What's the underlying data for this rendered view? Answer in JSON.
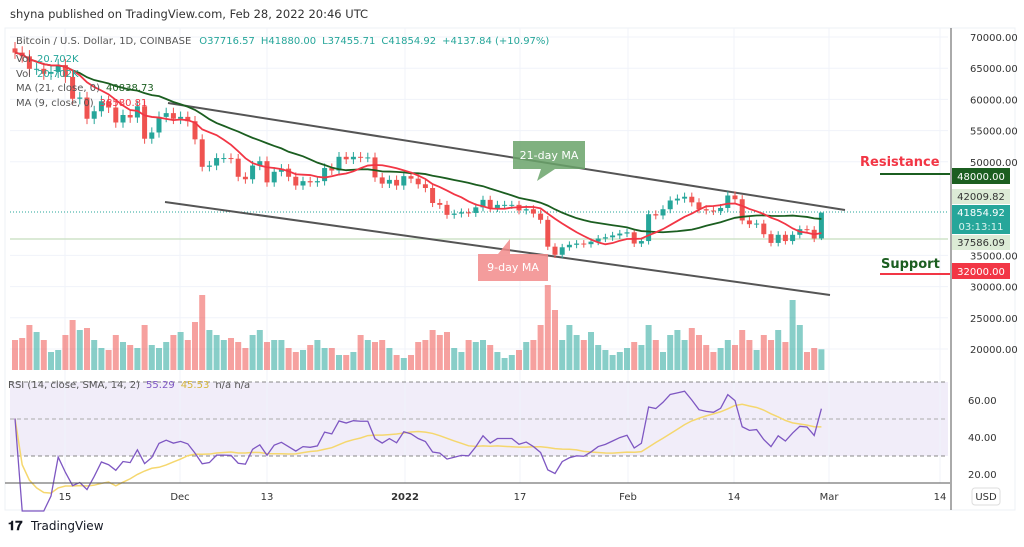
{
  "header": {
    "published": "shyna published on TradingView.com, Feb 28, 2022 20:46 UTC"
  },
  "legend": {
    "symbol": "Bitcoin / U.S. Dollar, 1D, COINBASE",
    "open": "O37716.57",
    "high": "H41880.00",
    "low": "L37455.71",
    "close": "C41854.92",
    "change": "+4137.84 (+10.97%)",
    "vol_label": "Vol",
    "vol_value": "20.702K",
    "vol2_label": "Vol",
    "vol2_value": "20.702K",
    "ma21_label": "MA (21, close, 0)",
    "ma21_value": "40838.73",
    "ma9_label": "MA (9, close, 0)",
    "ma9_value": "38580.81",
    "rsi_label": "RSI (14, close, SMA, 14, 2)",
    "rsi_value": "55.29",
    "rsi_sma_value": "45.53",
    "rsi_na": "n/a  n/a"
  },
  "price_axis": {
    "currency": "USD",
    "ticks": [
      "70000.00",
      "65000.00",
      "60000.00",
      "55000.00",
      "50000.00",
      "35000.00",
      "30000.00",
      "25000.00",
      "20000.00"
    ],
    "resistance_price": "48000.00",
    "high_marker": "42009.82",
    "last_price": "41854.92",
    "countdown": "03:13:11",
    "low_marker": "37586.09",
    "support_price": "32000.00"
  },
  "rsi_axis": {
    "ticks": [
      "60.00",
      "40.00",
      "20.00"
    ]
  },
  "time_axis": {
    "ticks": [
      "15",
      "Dec",
      "13",
      "2022",
      "17",
      "Feb",
      "14",
      "Mar",
      "14"
    ]
  },
  "annotations": {
    "resistance": "Resistance",
    "support": "Support",
    "ma21": "21-day MA",
    "ma9": "9-day MA"
  },
  "footer": {
    "logo": "TradingView"
  },
  "colors": {
    "up": "#26a69a",
    "down": "#ef5350",
    "ma9": "#f23645",
    "ma21": "#1b5e20",
    "rsi": "#7e57c2",
    "rsi_sma": "#f5d76e",
    "resistance_line": "#1b5e20",
    "support_line": "#f23645"
  },
  "chart_data": {
    "type": "candlestick",
    "title": "Bitcoin / U.S. Dollar, 1D, COINBASE",
    "ylim": [
      15000,
      71000
    ],
    "columns": [
      "date",
      "close",
      "volume_k"
    ],
    "last_candle": {
      "open": 37716.57,
      "high": 41880.0,
      "low": 37455.71,
      "close": 41854.92,
      "volume_k": 20.702
    },
    "candles": [
      [
        "2021-11-08",
        67500,
        30
      ],
      [
        "2021-11-09",
        66900,
        32
      ],
      [
        "2021-11-10",
        64900,
        45
      ],
      [
        "2021-11-11",
        64900,
        38
      ],
      [
        "2021-11-12",
        64100,
        30
      ],
      [
        "2021-11-13",
        64400,
        18
      ],
      [
        "2021-11-14",
        65500,
        20
      ],
      [
        "2021-11-15",
        63600,
        35
      ],
      [
        "2021-11-16",
        60100,
        50
      ],
      [
        "2021-11-17",
        60300,
        40
      ],
      [
        "2021-11-18",
        56900,
        42
      ],
      [
        "2021-11-19",
        58100,
        30
      ],
      [
        "2021-11-20",
        59700,
        22
      ],
      [
        "2021-11-21",
        58700,
        20
      ],
      [
        "2021-11-22",
        56300,
        35
      ],
      [
        "2021-11-23",
        57500,
        28
      ],
      [
        "2021-11-24",
        57100,
        25
      ],
      [
        "2021-11-25",
        58900,
        22
      ],
      [
        "2021-11-26",
        53700,
        45
      ],
      [
        "2021-11-27",
        54700,
        25
      ],
      [
        "2021-11-28",
        57200,
        22
      ],
      [
        "2021-11-29",
        57800,
        28
      ],
      [
        "2021-11-30",
        56900,
        35
      ],
      [
        "2021-12-01",
        57200,
        38
      ],
      [
        "2021-12-02",
        56500,
        30
      ],
      [
        "2021-12-03",
        53600,
        48
      ],
      [
        "2021-12-04",
        49200,
        75
      ],
      [
        "2021-12-05",
        49400,
        40
      ],
      [
        "2021-12-06",
        50600,
        35
      ],
      [
        "2021-12-07",
        50600,
        30
      ],
      [
        "2021-12-08",
        50500,
        32
      ],
      [
        "2021-12-09",
        47600,
        28
      ],
      [
        "2021-12-10",
        47200,
        22
      ],
      [
        "2021-12-11",
        49400,
        35
      ],
      [
        "2021-12-12",
        50100,
        40
      ],
      [
        "2021-12-13",
        46700,
        28
      ],
      [
        "2021-12-14",
        48400,
        30
      ],
      [
        "2021-12-15",
        48900,
        30
      ],
      [
        "2021-12-16",
        47600,
        22
      ],
      [
        "2021-12-17",
        46200,
        18
      ],
      [
        "2021-12-18",
        46900,
        20
      ],
      [
        "2021-12-19",
        46700,
        25
      ],
      [
        "2021-12-20",
        46900,
        30
      ],
      [
        "2021-12-21",
        49000,
        22
      ],
      [
        "2021-12-22",
        48600,
        22
      ],
      [
        "2021-12-23",
        50800,
        15
      ],
      [
        "2021-12-24",
        50400,
        15
      ],
      [
        "2021-12-25",
        50800,
        18
      ],
      [
        "2021-12-26",
        50700,
        35
      ],
      [
        "2021-12-27",
        50700,
        30
      ],
      [
        "2021-12-28",
        47500,
        28
      ],
      [
        "2021-12-29",
        46500,
        30
      ],
      [
        "2021-12-30",
        47100,
        22
      ],
      [
        "2021-12-31",
        46200,
        15
      ],
      [
        "2022-01-01",
        47700,
        12
      ],
      [
        "2022-01-02",
        47300,
        15
      ],
      [
        "2022-01-03",
        46400,
        28
      ],
      [
        "2022-01-04",
        45800,
        30
      ],
      [
        "2022-01-05",
        43400,
        40
      ],
      [
        "2022-01-06",
        43100,
        35
      ],
      [
        "2022-01-07",
        41500,
        38
      ],
      [
        "2022-01-08",
        41700,
        22
      ],
      [
        "2022-01-09",
        41900,
        18
      ],
      [
        "2022-01-10",
        41800,
        30
      ],
      [
        "2022-01-11",
        42700,
        28
      ],
      [
        "2022-01-12",
        43900,
        30
      ],
      [
        "2022-01-13",
        42600,
        25
      ],
      [
        "2022-01-14",
        43100,
        18
      ],
      [
        "2022-01-15",
        43100,
        12
      ],
      [
        "2022-01-16",
        43100,
        15
      ],
      [
        "2022-01-17",
        42200,
        20
      ],
      [
        "2022-01-18",
        42400,
        28
      ],
      [
        "2022-01-19",
        41700,
        30
      ],
      [
        "2022-01-20",
        40700,
        45
      ],
      [
        "2022-01-21",
        36400,
        85
      ],
      [
        "2022-01-22",
        35100,
        60
      ],
      [
        "2022-01-23",
        36300,
        30
      ],
      [
        "2022-01-24",
        36700,
        45
      ],
      [
        "2022-01-25",
        36900,
        35
      ],
      [
        "2022-01-26",
        36800,
        30
      ],
      [
        "2022-01-27",
        37200,
        38
      ],
      [
        "2022-01-28",
        37700,
        25
      ],
      [
        "2022-01-29",
        37900,
        20
      ],
      [
        "2022-01-30",
        38200,
        15
      ],
      [
        "2022-01-31",
        38500,
        18
      ],
      [
        "2022-02-01",
        38700,
        22
      ],
      [
        "2022-02-02",
        36900,
        28
      ],
      [
        "2022-02-03",
        37300,
        25
      ],
      [
        "2022-02-04",
        41600,
        45
      ],
      [
        "2022-02-05",
        41400,
        30
      ],
      [
        "2022-02-06",
        42400,
        18
      ],
      [
        "2022-02-07",
        43800,
        35
      ],
      [
        "2022-02-08",
        44100,
        40
      ],
      [
        "2022-02-09",
        44400,
        30
      ],
      [
        "2022-02-10",
        43500,
        42
      ],
      [
        "2022-02-11",
        42400,
        35
      ],
      [
        "2022-02-12",
        42200,
        25
      ],
      [
        "2022-02-13",
        42100,
        18
      ],
      [
        "2022-02-14",
        42600,
        22
      ],
      [
        "2022-02-15",
        44600,
        30
      ],
      [
        "2022-02-16",
        44000,
        25
      ],
      [
        "2022-02-17",
        40600,
        40
      ],
      [
        "2022-02-18",
        40000,
        30
      ],
      [
        "2022-02-19",
        40100,
        20
      ],
      [
        "2022-02-20",
        38400,
        35
      ],
      [
        "2022-02-21",
        37000,
        30
      ],
      [
        "2022-02-22",
        38300,
        40
      ],
      [
        "2022-02-23",
        37300,
        28
      ],
      [
        "2022-02-24",
        38300,
        70
      ],
      [
        "2022-02-25",
        39200,
        45
      ],
      [
        "2022-02-26",
        39100,
        18
      ],
      [
        "2022-02-27",
        37700,
        22
      ],
      [
        "2022-02-28",
        41855,
        20.7
      ]
    ],
    "indicators": [
      "MA 9",
      "MA 21",
      "RSI 14",
      "RSI SMA 14"
    ],
    "rsi_bands": [
      70,
      50,
      30
    ]
  }
}
